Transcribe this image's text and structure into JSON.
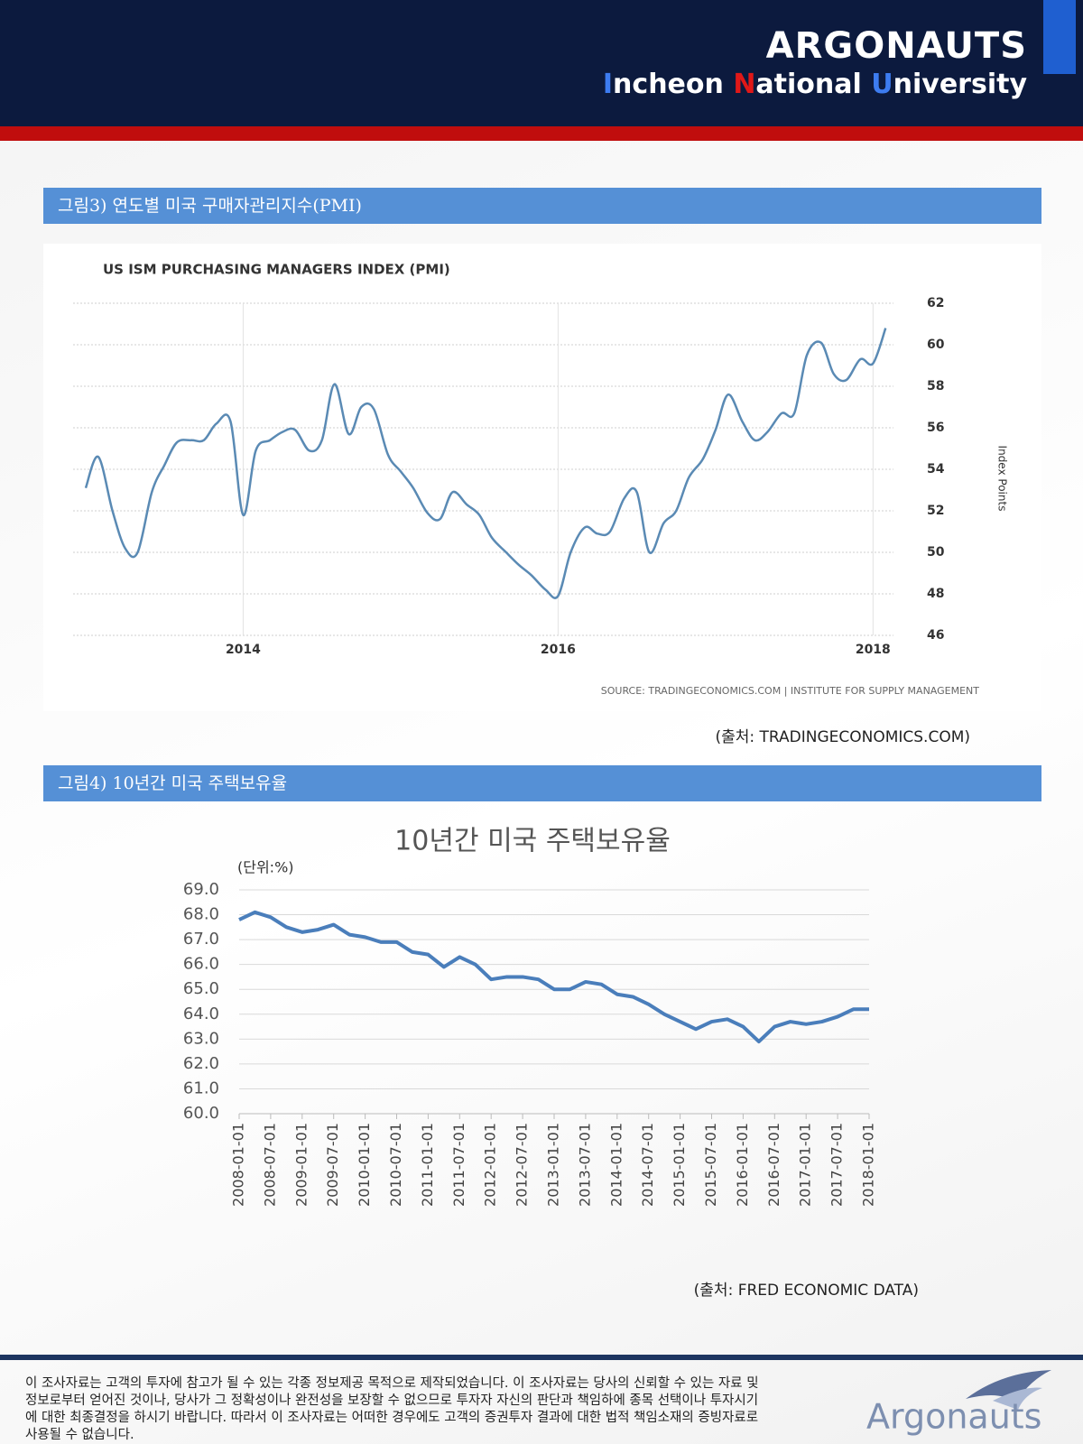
{
  "header": {
    "brand": "ARGONAUTS",
    "university": [
      {
        "initial": "I",
        "rest": "ncheon"
      },
      {
        "initial": "N",
        "rest": "ational"
      },
      {
        "initial": "U",
        "rest": "niversity"
      }
    ]
  },
  "figure3": {
    "heading": "그림3) 연도별 미국 구매자관리지수(PMI)",
    "caption": "(출처: TRADINGECONOMICS.COM)",
    "chart_data": {
      "type": "line",
      "title": "US ISM PURCHASING MANAGERS INDEX (PMI)",
      "y_label": "Index Points",
      "source": "SOURCE: TRADINGECONOMICS.COM | INSTITUTE FOR SUPPLY MANAGEMENT",
      "x": [
        2013,
        2013.08,
        2013.17,
        2013.25,
        2013.33,
        2013.42,
        2013.5,
        2013.58,
        2013.67,
        2013.75,
        2013.83,
        2013.92,
        2014,
        2014.08,
        2014.17,
        2014.25,
        2014.33,
        2014.42,
        2014.5,
        2014.58,
        2014.67,
        2014.75,
        2014.83,
        2014.92,
        2015,
        2015.08,
        2015.17,
        2015.25,
        2015.33,
        2015.42,
        2015.5,
        2015.58,
        2015.67,
        2015.75,
        2015.83,
        2015.92,
        2016,
        2016.08,
        2016.17,
        2016.25,
        2016.33,
        2016.42,
        2016.5,
        2016.58,
        2016.67,
        2016.75,
        2016.83,
        2016.92,
        2017,
        2017.08,
        2017.17,
        2017.25,
        2017.33,
        2017.42,
        2017.5,
        2017.58,
        2017.67,
        2017.75,
        2017.83,
        2017.92,
        2018,
        2018.08
      ],
      "series": [
        {
          "color": "#5a8ab4",
          "values": [
            53.1,
            54.6,
            52,
            50.2,
            50.0,
            52.9,
            54.2,
            55.3,
            55.4,
            55.4,
            56.2,
            56.3,
            51.8,
            54.9,
            55.4,
            55.8,
            55.9,
            54.9,
            55.4,
            58.1,
            55.7,
            57.0,
            56.9,
            54.7,
            53.9,
            53.1,
            51.9,
            51.6,
            52.9,
            52.3,
            51.8,
            50.7,
            50.0,
            49.4,
            48.9,
            48.2,
            47.9,
            50.0,
            51.2,
            50.9,
            51.0,
            52.6,
            52.9,
            50.0,
            51.4,
            52.0,
            53.6,
            54.5,
            55.9,
            57.6,
            56.3,
            55.4,
            55.8,
            56.7,
            56.7,
            59.5,
            60.1,
            58.6,
            58.3,
            59.3,
            59.1,
            60.8
          ]
        }
      ],
      "xlim": [
        2012.92,
        2018.13
      ],
      "xticks": [
        2014,
        2016,
        2018
      ],
      "ylim": [
        46,
        62
      ],
      "yticks": [
        46,
        48,
        50,
        52,
        54,
        56,
        58,
        60,
        62
      ],
      "grid": true
    }
  },
  "figure4": {
    "heading": "그림4) 10년간 미국 주택보유율",
    "caption": "(출처: FRED ECONOMIC DATA)",
    "chart_data": {
      "type": "line",
      "title": "10년간 미국 주택보유율",
      "unit": "(단위:%)",
      "categories": [
        "2008-01-01",
        null,
        "2008-07-01",
        null,
        "2009-01-01",
        null,
        "2009-07-01",
        null,
        "2010-01-01",
        null,
        "2010-07-01",
        null,
        "2011-01-01",
        null,
        "2011-07-01",
        null,
        "2012-01-01",
        null,
        "2012-07-01",
        null,
        "2013-01-01",
        null,
        "2013-07-01",
        null,
        "2014-01-01",
        null,
        "2014-07-01",
        null,
        "2015-01-01",
        null,
        "2015-07-01",
        null,
        "2016-01-01",
        null,
        "2016-07-01",
        null,
        "2017-01-01",
        null,
        "2017-07-01",
        null,
        "2018-01-01"
      ],
      "series": [
        {
          "color": "#4a7ebb",
          "values": [
            67.8,
            68.1,
            67.9,
            67.5,
            67.3,
            67.4,
            67.6,
            67.2,
            67.1,
            66.9,
            66.9,
            66.5,
            66.4,
            65.9,
            66.3,
            66.0,
            65.4,
            65.5,
            65.5,
            65.4,
            65.0,
            65.0,
            65.3,
            65.2,
            64.8,
            64.7,
            64.4,
            64.0,
            63.7,
            63.4,
            63.7,
            63.8,
            63.5,
            62.9,
            63.5,
            63.7,
            63.6,
            63.7,
            63.9,
            64.2,
            64.2
          ]
        }
      ],
      "ylim": [
        60,
        69
      ],
      "yticks": [
        {
          "value": 60,
          "label": "60.0"
        },
        {
          "value": 61,
          "label": "61.0"
        },
        {
          "value": 62,
          "label": "62.0"
        },
        {
          "value": 63,
          "label": "63.0"
        },
        {
          "value": 64,
          "label": "64.0"
        },
        {
          "value": 65,
          "label": "65.0"
        },
        {
          "value": 66,
          "label": "66.0"
        },
        {
          "value": 67,
          "label": "67.0"
        },
        {
          "value": 68,
          "label": "68.0"
        },
        {
          "value": 69,
          "label": "69.0"
        }
      ],
      "grid": true
    }
  },
  "footer": {
    "disclaimer": [
      "이 조사자료는 고객의 투자에 참고가 될 수 있는 각종 정보제공 목적으로 제작되었습니다. 이 조사자료는 당사의 신뢰할 수 있는 자료 및",
      "정보로부터 얻어진 것이나, 당사가 그 정확성이나 완전성을 보장할 수 없으므로 투자자 자신의 판단과 책임하에 종목 선택이나 투자시기",
      "에 대한 최종결정을 하시기 바랍니다. 따라서 이 조사자료는 어떠한 경우에도 고객의 증권투자 결과에 대한 법적 책임소재의 증빙자료로",
      "사용될 수 없습니다."
    ],
    "logo": "Argonauts"
  }
}
